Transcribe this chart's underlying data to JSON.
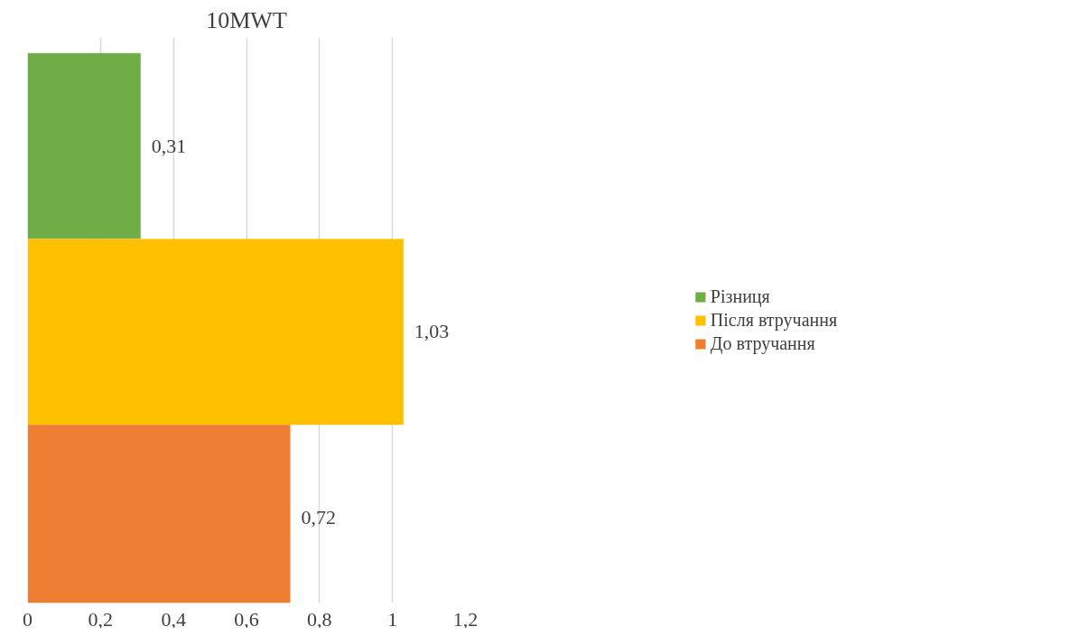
{
  "chart_data": {
    "type": "bar",
    "orientation": "horizontal",
    "title": "10MWT",
    "categories": [
      null
    ],
    "series": [
      {
        "name": "Різниця",
        "color": "#70ad47",
        "values": [
          0.31
        ]
      },
      {
        "name": "Після втручання",
        "color": "#ffc000",
        "values": [
          1.03
        ]
      },
      {
        "name": "До втручання",
        "color": "#ed7d31",
        "values": [
          0.72
        ]
      }
    ],
    "xlim": [
      0,
      1.2
    ],
    "xticks": [
      0,
      {
        "value": 0.2,
        "label": "0,2"
      },
      {
        "value": 0.4,
        "label": "0,4"
      },
      {
        "value": 0.6,
        "label": "0,6"
      },
      {
        "value": 0.8,
        "label": "0,8"
      },
      1,
      {
        "value": 1.2,
        "label": "1,2"
      }
    ],
    "value_labels": [
      [
        "0,31"
      ],
      [
        "1,03"
      ],
      [
        "0,72"
      ]
    ],
    "grid": "x",
    "legend": "right",
    "tick_labels": "x"
  }
}
